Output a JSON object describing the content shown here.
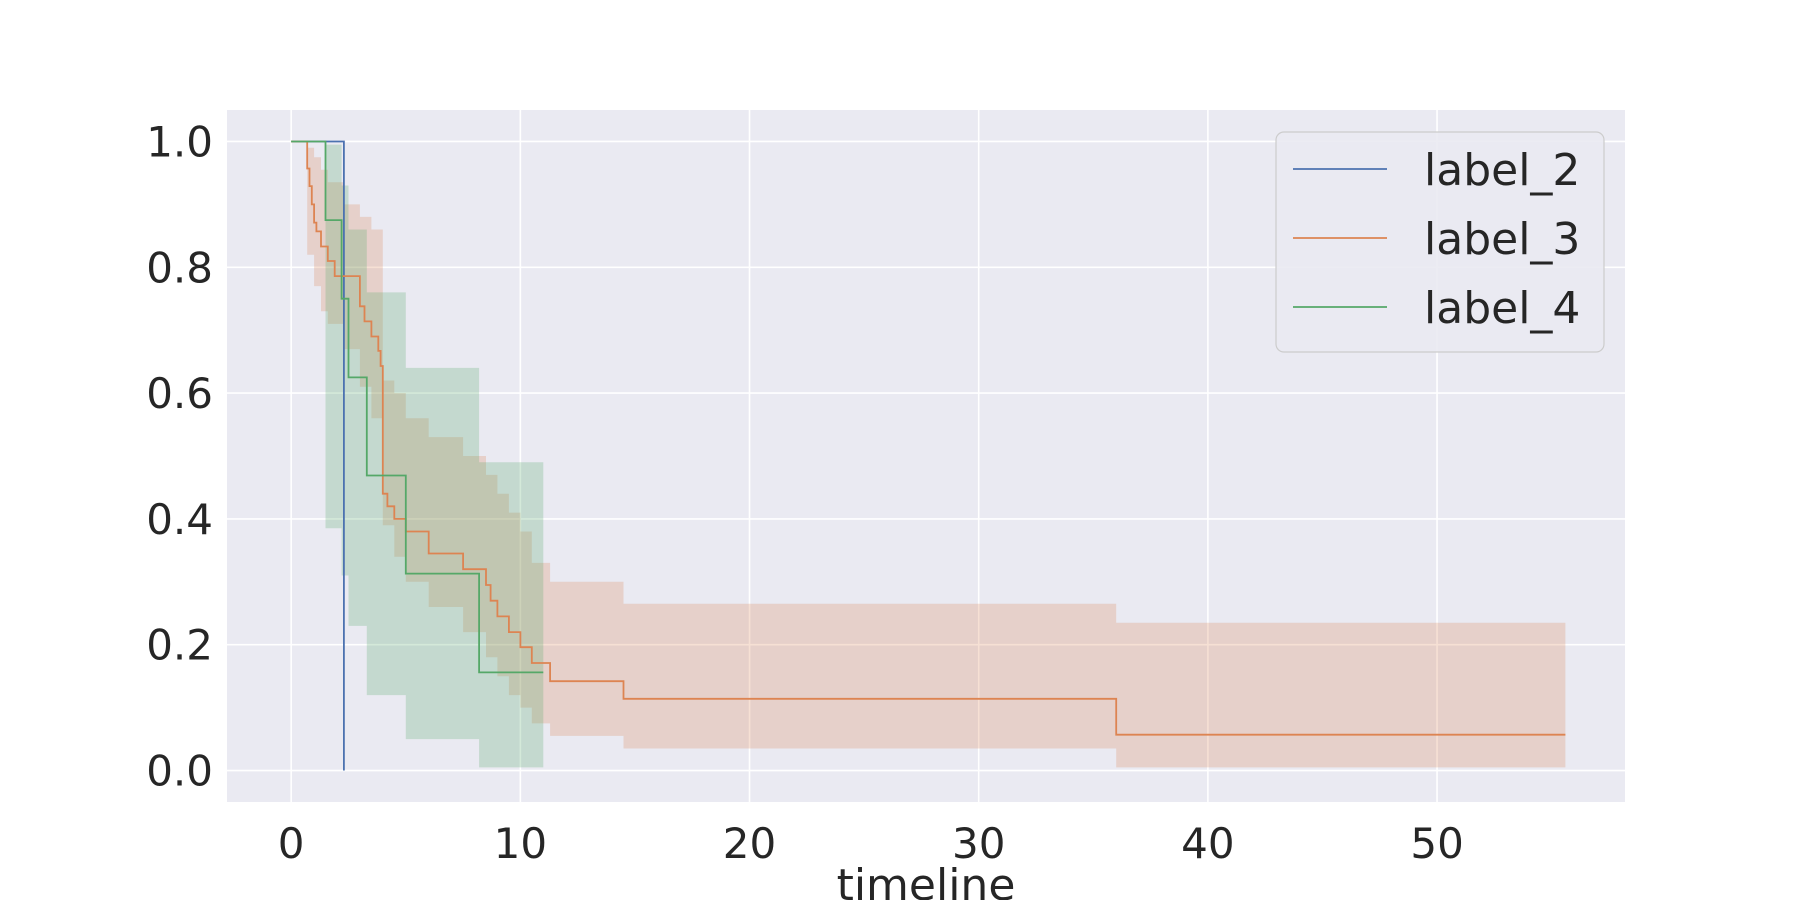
{
  "chart_data": {
    "type": "line",
    "title": "",
    "xlabel": "timeline",
    "ylabel": "",
    "xlim": [
      -2.8,
      58.2
    ],
    "ylim": [
      -0.05,
      1.05
    ],
    "xticks": [
      0,
      10,
      20,
      30,
      40,
      50
    ],
    "yticks": [
      0.0,
      0.2,
      0.4,
      0.6,
      0.8,
      1.0
    ],
    "xtick_labels": [
      "0",
      "10",
      "20",
      "30",
      "40",
      "50"
    ],
    "ytick_labels": [
      "0.0",
      "0.2",
      "0.4",
      "0.6",
      "0.8",
      "1.0"
    ],
    "grid": true,
    "legend": "top-right",
    "step": true,
    "series": [
      {
        "name": "label_2",
        "color": "#4c72b0",
        "x": [
          0,
          2.3,
          2.3
        ],
        "y": [
          1.0,
          1.0,
          0.0
        ],
        "ci_lower": [
          1.0,
          0.32
        ],
        "ci_upper": [
          1.0,
          1.0
        ],
        "ci_x": [
          0,
          2.3
        ],
        "draw_ci": false
      },
      {
        "name": "label_3",
        "color": "#dd8452",
        "x": [
          0,
          0.7,
          0.8,
          0.9,
          1.0,
          1.1,
          1.3,
          1.6,
          1.9,
          2.3,
          3.0,
          3.2,
          3.5,
          3.8,
          3.9,
          4.0,
          4.2,
          4.5,
          5.0,
          6.0,
          7.5,
          8.5,
          8.7,
          9.0,
          9.5,
          10.0,
          10.5,
          11.3,
          14.5,
          36.0,
          55.6
        ],
        "y": [
          1.0,
          0.957,
          0.929,
          0.9,
          0.871,
          0.857,
          0.833,
          0.81,
          0.786,
          0.786,
          0.738,
          0.714,
          0.69,
          0.667,
          0.643,
          0.44,
          0.42,
          0.4,
          0.38,
          0.345,
          0.32,
          0.295,
          0.27,
          0.245,
          0.22,
          0.196,
          0.171,
          0.142,
          0.114,
          0.057,
          0.057
        ],
        "ci_x": [
          0,
          0.7,
          1.0,
          1.3,
          1.6,
          2.3,
          3.0,
          3.5,
          4.0,
          4.5,
          5.0,
          6.0,
          7.5,
          8.5,
          9.0,
          9.5,
          10.0,
          10.5,
          11.3,
          14.5,
          36.0,
          55.6
        ],
        "ci_lower": [
          1.0,
          0.82,
          0.77,
          0.73,
          0.71,
          0.67,
          0.61,
          0.56,
          0.39,
          0.34,
          0.3,
          0.26,
          0.22,
          0.18,
          0.15,
          0.12,
          0.1,
          0.075,
          0.055,
          0.035,
          0.005,
          0.005
        ],
        "ci_upper": [
          1.0,
          0.99,
          0.975,
          0.955,
          0.935,
          0.9,
          0.88,
          0.86,
          0.62,
          0.6,
          0.56,
          0.53,
          0.5,
          0.47,
          0.44,
          0.41,
          0.38,
          0.33,
          0.3,
          0.265,
          0.235,
          0.198
        ],
        "draw_ci": true
      },
      {
        "name": "label_4",
        "color": "#55a868",
        "x": [
          0,
          1.5,
          2.2,
          2.5,
          3.3,
          5.0,
          8.2,
          11.0
        ],
        "y": [
          1.0,
          0.875,
          0.75,
          0.625,
          0.469,
          0.313,
          0.156,
          0.156
        ],
        "ci_x": [
          0,
          1.5,
          2.2,
          2.5,
          3.3,
          5.0,
          8.2,
          11.0
        ],
        "ci_lower": [
          1.0,
          0.385,
          0.31,
          0.23,
          0.12,
          0.05,
          0.005,
          0.005
        ],
        "ci_upper": [
          1.0,
          0.995,
          0.93,
          0.86,
          0.76,
          0.64,
          0.49,
          0.49
        ],
        "draw_ci": true
      }
    ]
  }
}
